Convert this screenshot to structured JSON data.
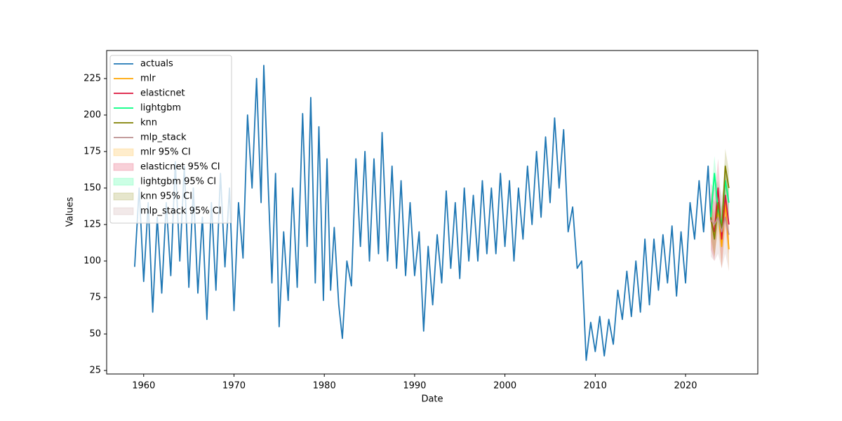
{
  "chart_data": {
    "type": "line",
    "xlabel": "Date",
    "ylabel": "Values",
    "xlim": [
      1955.9,
      2028.0
    ],
    "ylim": [
      22.6,
      244.2
    ],
    "xticks": [
      1960,
      1970,
      1980,
      1990,
      2000,
      2010,
      2020
    ],
    "yticks": [
      25,
      50,
      75,
      100,
      125,
      150,
      175,
      200,
      225
    ],
    "grid": false,
    "legend": "upper left",
    "series": [
      {
        "name": "actuals",
        "color": "#1f77b4",
        "x": [
          1959.0,
          1959.5,
          1960.0,
          1960.5,
          1961.0,
          1961.5,
          1962.0,
          1962.5,
          1963.0,
          1963.5,
          1964.0,
          1964.5,
          1965.0,
          1965.5,
          1966.0,
          1966.5,
          1967.0,
          1967.5,
          1968.0,
          1968.5,
          1969.0,
          1969.5,
          1970.0,
          1970.5,
          1971.0,
          1971.5,
          1972.0,
          1972.5,
          1973.0,
          1973.3,
          1973.8,
          1974.2,
          1974.6,
          1975.0,
          1975.5,
          1976.0,
          1976.5,
          1977.0,
          1977.6,
          1978.1,
          1978.5,
          1979.0,
          1979.4,
          1979.9,
          1980.3,
          1980.7,
          1981.1,
          1981.6,
          1982.0,
          1982.5,
          1983.0,
          1983.5,
          1984.0,
          1984.5,
          1985.0,
          1985.5,
          1986.0,
          1986.4,
          1987.0,
          1987.5,
          1988.0,
          1988.5,
          1989.0,
          1989.5,
          1990.0,
          1990.5,
          1991.0,
          1991.5,
          1992.0,
          1992.5,
          1993.0,
          1993.5,
          1994.0,
          1994.5,
          1995.0,
          1995.5,
          1996.0,
          1996.5,
          1997.0,
          1997.5,
          1998.0,
          1998.5,
          1999.0,
          1999.5,
          2000.0,
          2000.5,
          2001.0,
          2001.5,
          2002.0,
          2002.5,
          2003.0,
          2003.5,
          2004.0,
          2004.5,
          2005.0,
          2005.5,
          2006.0,
          2006.5,
          2007.0,
          2007.5,
          2008.0,
          2008.5,
          2009.0,
          2009.5,
          2010.0,
          2010.5,
          2011.0,
          2011.5,
          2012.0,
          2012.5,
          2013.0,
          2013.5,
          2014.0,
          2014.5,
          2015.0,
          2015.5,
          2016.0,
          2016.5,
          2017.0,
          2017.5,
          2018.0,
          2018.5,
          2019.0,
          2019.5,
          2020.0,
          2020.5,
          2021.0,
          2021.5,
          2022.0,
          2022.5,
          2022.8
        ],
        "values": [
          96,
          150,
          86,
          140,
          65,
          130,
          78,
          140,
          90,
          168,
          100,
          165,
          82,
          150,
          78,
          130,
          60,
          140,
          80,
          160,
          96,
          150,
          66,
          140,
          102,
          200,
          150,
          225,
          140,
          234,
          150,
          85,
          160,
          55,
          120,
          73,
          150,
          82,
          201,
          110,
          212,
          85,
          192,
          73,
          170,
          80,
          123,
          70,
          47,
          100,
          83,
          170,
          110,
          175,
          100,
          170,
          105,
          188,
          100,
          165,
          95,
          155,
          90,
          140,
          90,
          120,
          52,
          110,
          70,
          118,
          85,
          148,
          95,
          140,
          88,
          150,
          100,
          145,
          100,
          155,
          105,
          150,
          105,
          160,
          110,
          155,
          100,
          150,
          115,
          165,
          125,
          175,
          130,
          185,
          140,
          198,
          150,
          190,
          120,
          137,
          95,
          100,
          32,
          58,
          38,
          62,
          35,
          60,
          43,
          80,
          60,
          93,
          62,
          100,
          65,
          115,
          70,
          115,
          80,
          118,
          85,
          124,
          76,
          120,
          85,
          140,
          115,
          155,
          120,
          165,
          128
        ]
      },
      {
        "name": "mlr",
        "color": "#ffa500",
        "x": [
          2022.8,
          2023.2,
          2023.6,
          2024.0,
          2024.4,
          2024.8
        ],
        "values": [
          128,
          118,
          135,
          110,
          140,
          108
        ]
      },
      {
        "name": "elasticnet",
        "color": "#dc143c",
        "x": [
          2022.8,
          2023.2,
          2023.6,
          2024.0,
          2024.4,
          2024.8
        ],
        "values": [
          128,
          120,
          150,
          115,
          145,
          125
        ]
      },
      {
        "name": "lightgbm",
        "color": "#00ff7f",
        "x": [
          2022.8,
          2023.2,
          2023.6,
          2024.0,
          2024.4,
          2024.8
        ],
        "values": [
          130,
          160,
          135,
          125,
          155,
          140
        ]
      },
      {
        "name": "knn",
        "color": "#808000",
        "x": [
          2022.8,
          2023.2,
          2023.6,
          2024.0,
          2024.4,
          2024.8
        ],
        "values": [
          130,
          115,
          140,
          120,
          165,
          150
        ]
      },
      {
        "name": "mlp_stack",
        "color": "#bc8f8f",
        "x": [
          2022.8,
          2023.2,
          2023.6,
          2024.0,
          2024.4,
          2024.8
        ],
        "values": [
          128,
          125,
          130,
          120,
          130,
          118
        ]
      }
    ],
    "bands": [
      {
        "name": "mlr 95% CI",
        "color": "#ffa500",
        "x": [
          2022.8,
          2023.2,
          2023.6,
          2024.0,
          2024.4,
          2024.8
        ],
        "lower": [
          113,
          103,
          120,
          95,
          125,
          93
        ],
        "upper": [
          143,
          133,
          150,
          125,
          155,
          123
        ]
      },
      {
        "name": "elasticnet 95% CI",
        "color": "#dc143c",
        "x": [
          2022.8,
          2023.2,
          2023.6,
          2024.0,
          2024.4,
          2024.8
        ],
        "lower": [
          108,
          100,
          130,
          95,
          125,
          105
        ],
        "upper": [
          148,
          140,
          170,
          135,
          165,
          145
        ]
      },
      {
        "name": "lightgbm 95% CI",
        "color": "#00ff7f",
        "x": [
          2022.8,
          2023.2,
          2023.6,
          2024.0,
          2024.4,
          2024.8
        ],
        "lower": [
          118,
          148,
          123,
          113,
          143,
          128
        ],
        "upper": [
          142,
          172,
          147,
          137,
          167,
          152
        ]
      },
      {
        "name": "knn 95% CI",
        "color": "#808000",
        "x": [
          2022.8,
          2023.2,
          2023.6,
          2024.0,
          2024.4,
          2024.8
        ],
        "lower": [
          118,
          103,
          128,
          108,
          153,
          138
        ],
        "upper": [
          142,
          127,
          152,
          132,
          177,
          162
        ]
      },
      {
        "name": "mlp_stack 95% CI",
        "color": "#bc8f8f",
        "x": [
          2022.8,
          2023.2,
          2023.6,
          2024.0,
          2024.4,
          2024.8
        ],
        "lower": [
          103,
          100,
          105,
          95,
          105,
          93
        ],
        "upper": [
          153,
          150,
          155,
          145,
          155,
          143
        ]
      }
    ]
  }
}
